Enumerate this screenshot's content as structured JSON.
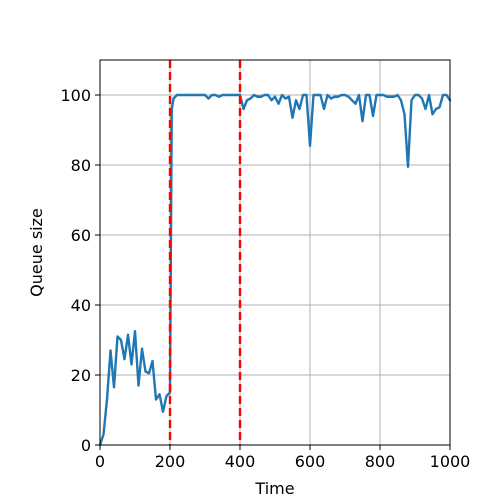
{
  "chart_data": {
    "type": "line",
    "title": "",
    "xlabel": "Time",
    "ylabel": "Queue size",
    "xlim": [
      0,
      1000
    ],
    "ylim": [
      0,
      110
    ],
    "xticks": [
      0,
      200,
      400,
      600,
      800,
      1000
    ],
    "yticks": [
      0,
      20,
      40,
      60,
      80,
      100
    ],
    "xtick_labels": [
      "0",
      "200",
      "400",
      "600",
      "800",
      "1000"
    ],
    "ytick_labels": [
      "0",
      "20",
      "40",
      "60",
      "80",
      "100"
    ],
    "grid": true,
    "series": [
      {
        "color": "#1f77b4",
        "x": [
          0,
          10,
          20,
          30,
          40,
          50,
          60,
          70,
          80,
          90,
          100,
          110,
          120,
          130,
          140,
          150,
          160,
          170,
          180,
          190,
          200,
          205,
          210,
          220,
          230,
          240,
          250,
          260,
          270,
          280,
          290,
          300,
          310,
          320,
          330,
          340,
          350,
          360,
          370,
          380,
          390,
          400,
          410,
          420,
          430,
          440,
          450,
          460,
          470,
          480,
          490,
          500,
          510,
          520,
          530,
          540,
          550,
          560,
          570,
          580,
          590,
          600,
          610,
          620,
          630,
          640,
          650,
          660,
          670,
          680,
          690,
          700,
          710,
          720,
          730,
          740,
          750,
          760,
          770,
          780,
          790,
          800,
          810,
          820,
          830,
          840,
          850,
          860,
          870,
          880,
          890,
          900,
          910,
          920,
          930,
          940,
          950,
          960,
          970,
          980,
          990,
          1000
        ],
        "y": [
          0,
          3,
          13,
          27,
          16.5,
          31,
          30,
          24.5,
          31.5,
          23,
          32.5,
          17,
          27.5,
          21,
          20.5,
          24,
          13,
          14.5,
          9.5,
          14,
          15,
          96,
          99,
          100,
          100,
          100,
          100,
          100,
          100,
          100,
          100,
          100,
          99,
          100,
          100,
          99.5,
          100,
          100,
          100,
          100,
          100,
          100,
          96,
          98.5,
          99,
          100,
          99.5,
          99.5,
          100,
          100,
          98.5,
          99.5,
          97.5,
          100,
          99,
          99.5,
          93.5,
          98.5,
          96,
          100,
          100,
          85.5,
          100,
          100,
          100,
          96,
          100,
          99,
          99.5,
          99.5,
          100,
          100,
          99.5,
          98.5,
          97.5,
          100,
          92.5,
          100,
          100,
          94,
          100,
          100,
          100,
          99.5,
          99.5,
          99.5,
          100,
          98.5,
          94.5,
          79.5,
          98.5,
          100,
          100,
          99,
          96,
          100,
          94.5,
          96,
          96.5,
          100,
          100,
          98.5
        ]
      }
    ],
    "vlines": [
      {
        "x": 200,
        "color": "#ff0000",
        "style": "dashed"
      },
      {
        "x": 400,
        "color": "#ff0000",
        "style": "dashed"
      }
    ]
  }
}
